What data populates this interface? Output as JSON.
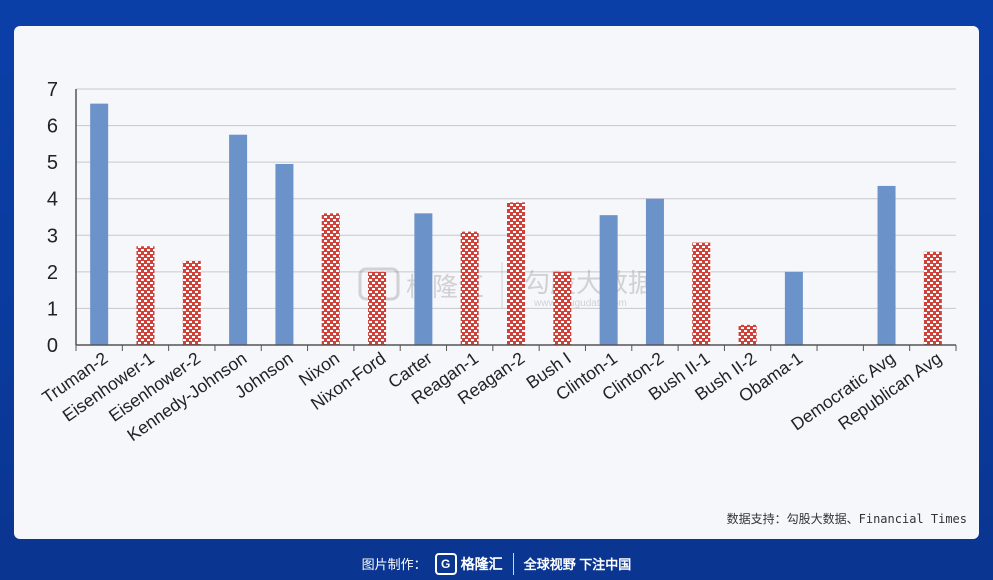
{
  "chart_data": {
    "type": "bar",
    "categories": [
      "Truman-2",
      "Eisenhower-1",
      "Eisenhower-2",
      "Kennedy-Johnson",
      "Johnson",
      "Nixon",
      "Nixon-Ford",
      "Carter",
      "Reagan-1",
      "Reagan-2",
      "Bush I",
      "Clinton-1",
      "Clinton-2",
      "Bush II-1",
      "Bush II-2",
      "Obama-1",
      "",
      "Democratic Avg",
      "Republican Avg"
    ],
    "values": [
      6.6,
      2.7,
      2.3,
      5.75,
      4.95,
      3.6,
      2.0,
      3.6,
      3.1,
      3.9,
      2.0,
      3.55,
      4.0,
      2.8,
      0.55,
      2.0,
      null,
      4.35,
      2.55
    ],
    "party": [
      "D",
      "R",
      "R",
      "D",
      "D",
      "R",
      "R",
      "D",
      "R",
      "R",
      "R",
      "D",
      "D",
      "R",
      "R",
      "D",
      "",
      "D",
      "R"
    ],
    "ylim": [
      0,
      7
    ],
    "yticks": [
      0,
      1,
      2,
      3,
      4,
      5,
      6,
      7
    ],
    "grid": true,
    "colors": {
      "D": "#6b93c9",
      "R": "#d0413a",
      "R_pattern": "#ffffff",
      "grid": "#c8c8cc",
      "axis": "#555555"
    }
  },
  "watermark": {
    "left": "格隆汇",
    "right": "勾股大数据",
    "sub": "www.gougudata.com"
  },
  "source_text": "数据支持：勾股大数据、Financial Times",
  "footer": {
    "made_by": "图片制作：",
    "logo_letter": "G",
    "brand": "格隆汇",
    "slogan": "全球视野 下注中国"
  }
}
